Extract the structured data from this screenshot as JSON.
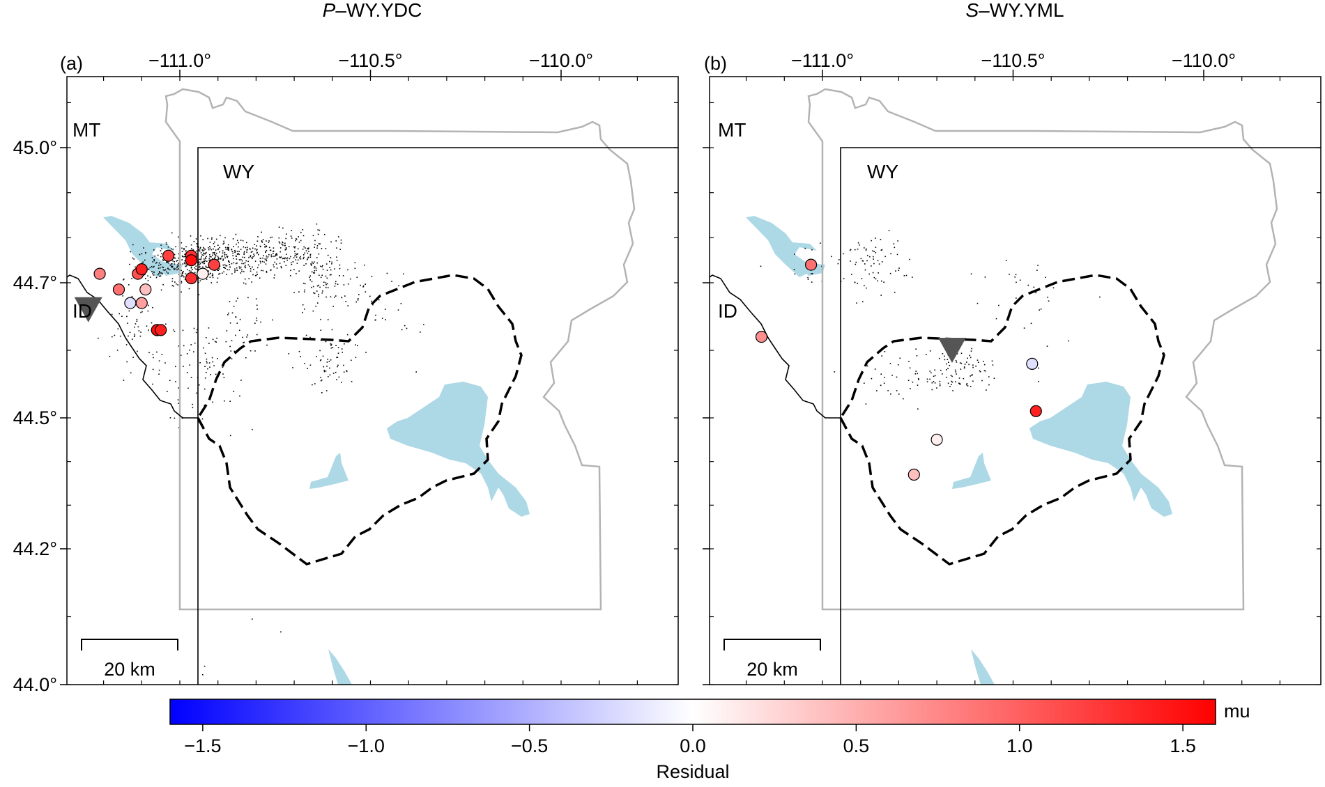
{
  "panels": [
    {
      "id": "a",
      "label": "(a)",
      "title_phase": "P",
      "title_station": "–WY.YDC",
      "lon_ticks": [
        -111.0,
        -110.5,
        -110.0
      ],
      "lon_tick_labels": [
        "−111.0°",
        "−110.5°",
        "−110.0°"
      ],
      "lat_ticks": [
        45.0,
        44.7,
        44.5,
        44.2,
        44.0
      ],
      "lat_tick_labels": [
        "45.0°",
        "44.7°",
        "44.5°",
        "44.2°",
        "44.0°"
      ],
      "state_labels": [
        "MT",
        "WY",
        "ID"
      ],
      "scale_bar": "20 km",
      "station": {
        "lon": -111.24,
        "lat": 44.66
      },
      "events": [
        {
          "lon": -111.21,
          "lat": 44.72,
          "residual": 0.8
        },
        {
          "lon": -111.16,
          "lat": 44.69,
          "residual": 0.9
        },
        {
          "lon": -111.13,
          "lat": 44.67,
          "residual": -0.2
        },
        {
          "lon": -111.1,
          "lat": 44.67,
          "residual": 0.6
        },
        {
          "lon": -111.09,
          "lat": 44.69,
          "residual": 0.4
        },
        {
          "lon": -111.11,
          "lat": 44.72,
          "residual": 1.1
        },
        {
          "lon": -111.1,
          "lat": 44.73,
          "residual": 1.4
        },
        {
          "lon": -111.03,
          "lat": 44.76,
          "residual": 1.2
        },
        {
          "lon": -110.97,
          "lat": 44.76,
          "residual": 1.3
        },
        {
          "lon": -110.97,
          "lat": 44.75,
          "residual": 1.5
        },
        {
          "lon": -110.94,
          "lat": 44.72,
          "residual": 0.1
        },
        {
          "lon": -110.97,
          "lat": 44.71,
          "residual": 1.3
        },
        {
          "lon": -110.91,
          "lat": 44.74,
          "residual": 1.2
        },
        {
          "lon": -111.06,
          "lat": 44.63,
          "residual": 1.5
        },
        {
          "lon": -111.05,
          "lat": 44.63,
          "residual": 1.4
        }
      ]
    },
    {
      "id": "b",
      "label": "(b)",
      "title_phase": "S",
      "title_station": "–WY.YML",
      "lon_ticks": [
        -111.0,
        -110.5,
        -110.0
      ],
      "lon_tick_labels": [
        "−111.0°",
        "−110.5°",
        "−110.0°"
      ],
      "lat_ticks": [
        45.0,
        44.7,
        44.5,
        44.2,
        44.0
      ],
      "lat_tick_labels": [
        "45.0°",
        "44.7°",
        "44.5°",
        "44.2°",
        "44.0°"
      ],
      "state_labels": [
        "MT",
        "WY",
        "ID"
      ],
      "scale_bar": "20 km",
      "station": {
        "lon": -110.66,
        "lat": 44.6
      },
      "events": [
        {
          "lon": -111.03,
          "lat": 44.74,
          "residual": 0.9
        },
        {
          "lon": -111.16,
          "lat": 44.62,
          "residual": 0.7
        },
        {
          "lon": -110.45,
          "lat": 44.58,
          "residual": -0.2
        },
        {
          "lon": -110.44,
          "lat": 44.51,
          "residual": 1.4
        },
        {
          "lon": -110.7,
          "lat": 44.45,
          "residual": 0.1
        },
        {
          "lon": -110.76,
          "lat": 44.37,
          "residual": 0.4
        }
      ]
    }
  ],
  "colorbar": {
    "min": -1.6,
    "max": 1.6,
    "ticks": [
      -1.5,
      -1.0,
      -0.5,
      0.0,
      0.5,
      1.0,
      1.5
    ],
    "tick_labels": [
      "−1.5",
      "−1.0",
      "−0.5",
      "0.0",
      "0.5",
      "1.0",
      "1.5"
    ],
    "unit": "mu",
    "label": "Residual",
    "color_low": "#0000ff",
    "color_mid": "#ffffff",
    "color_high": "#ff0000"
  },
  "colors": {
    "water": "#add8e6",
    "park_boundary": "#b3b3b3",
    "state_boundary": "#000000",
    "caldera": "#000000",
    "station": "#555555",
    "seismicity": "#000000"
  }
}
